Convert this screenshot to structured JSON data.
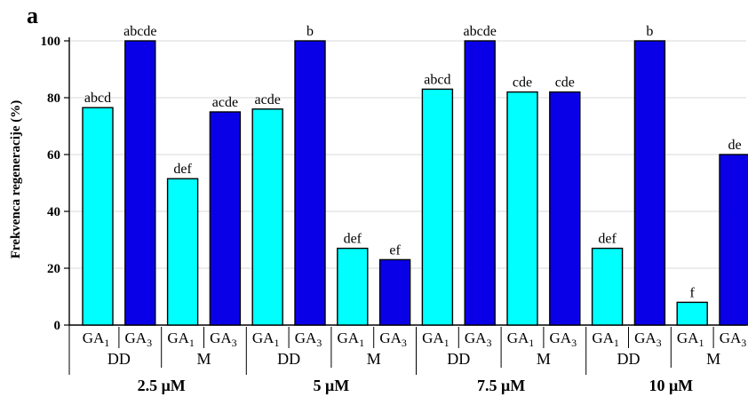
{
  "chart_data": {
    "type": "bar",
    "panel_label": "a",
    "ylabel": "Frekvenca regeneracije (%)",
    "ylim": [
      0,
      100
    ],
    "yticks": [
      0,
      20,
      40,
      60,
      80,
      100
    ],
    "grid": "horizontal",
    "concentrations": [
      "2.5 μM",
      "5 μM",
      "7.5 μM",
      "10 μM"
    ],
    "groups": [
      "DD",
      "M"
    ],
    "series_colors": {
      "GA1": "#00ffff",
      "GA3": "#0a00e8"
    },
    "bars": [
      {
        "concentration": "2.5 μM",
        "group": "DD",
        "treatment": "GA1",
        "base": "GA",
        "sub": "1",
        "value": 76.5,
        "label": "abcd"
      },
      {
        "concentration": "2.5 μM",
        "group": "DD",
        "treatment": "GA3",
        "base": "GA",
        "sub": "3",
        "value": 100,
        "label": "abcde"
      },
      {
        "concentration": "2.5 μM",
        "group": "M",
        "treatment": "GA1",
        "base": "GA",
        "sub": "1",
        "value": 51.5,
        "label": "def"
      },
      {
        "concentration": "2.5 μM",
        "group": "M",
        "treatment": "GA3",
        "base": "GA",
        "sub": "3",
        "value": 75,
        "label": "acde"
      },
      {
        "concentration": "5 μM",
        "group": "DD",
        "treatment": "GA1",
        "base": "GA",
        "sub": "1",
        "value": 76,
        "label": "acde"
      },
      {
        "concentration": "5 μM",
        "group": "DD",
        "treatment": "GA3",
        "base": "GA",
        "sub": "3",
        "value": 100,
        "label": "b"
      },
      {
        "concentration": "5 μM",
        "group": "M",
        "treatment": "GA1",
        "base": "GA",
        "sub": "1",
        "value": 27,
        "label": "def"
      },
      {
        "concentration": "5 μM",
        "group": "M",
        "treatment": "GA3",
        "base": "GA",
        "sub": "3",
        "value": 23,
        "label": "ef"
      },
      {
        "concentration": "7.5 μM",
        "group": "DD",
        "treatment": "GA1",
        "base": "GA",
        "sub": "1",
        "value": 83,
        "label": "abcd"
      },
      {
        "concentration": "7.5 μM",
        "group": "DD",
        "treatment": "GA3",
        "base": "GA",
        "sub": "3",
        "value": 100,
        "label": "abcde"
      },
      {
        "concentration": "7.5 μM",
        "group": "M",
        "treatment": "GA1",
        "base": "GA",
        "sub": "1",
        "value": 82,
        "label": "cde"
      },
      {
        "concentration": "7.5 μM",
        "group": "M",
        "treatment": "GA3",
        "base": "GA",
        "sub": "3",
        "value": 82,
        "label": "cde"
      },
      {
        "concentration": "10 μM",
        "group": "DD",
        "treatment": "GA1",
        "base": "GA",
        "sub": "1",
        "value": 27,
        "label": "def"
      },
      {
        "concentration": "10 μM",
        "group": "DD",
        "treatment": "GA3",
        "base": "GA",
        "sub": "3",
        "value": 100,
        "label": "b"
      },
      {
        "concentration": "10 μM",
        "group": "M",
        "treatment": "GA1",
        "base": "GA",
        "sub": "1",
        "value": 8,
        "label": "f"
      },
      {
        "concentration": "10 μM",
        "group": "M",
        "treatment": "GA3",
        "base": "GA",
        "sub": "3",
        "value": 60,
        "label": "de"
      }
    ]
  }
}
